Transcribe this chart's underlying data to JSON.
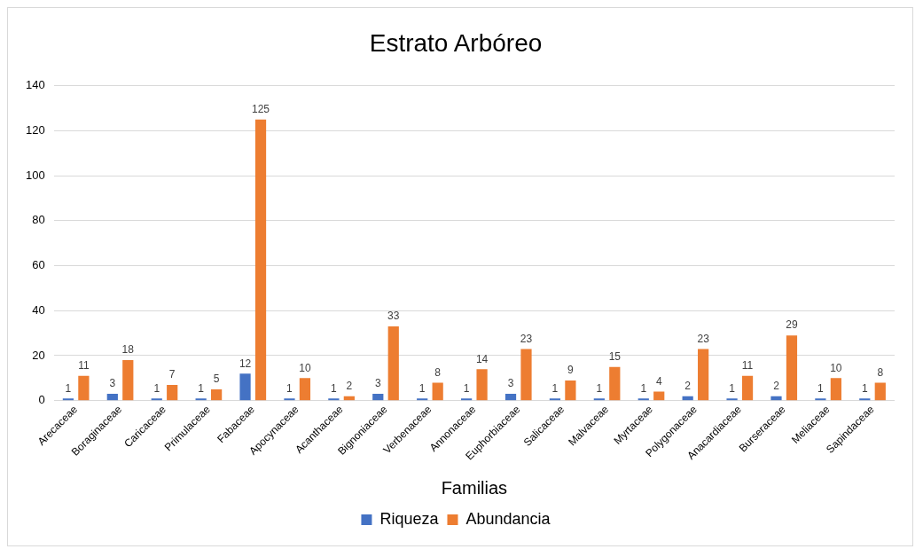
{
  "chart_data": {
    "type": "bar",
    "title": "Estrato Arbóreo",
    "xlabel": "Familias",
    "categories": [
      "Arecaceae",
      "Boraginaceae",
      "Caricaceae",
      "Primulaceae",
      "Fabaceae",
      "Apocynaceae",
      "Acanthaceae",
      "Bignoniaceae",
      "Verbenaceae",
      "Annonaceae",
      "Euphorbiaceae",
      "Salicaceae",
      "Malvaceae",
      "Myrtaceae",
      "Polygonaceae",
      "Anacardiaceae",
      "Burseraceae",
      "Meliaceae",
      "Sapindaceae"
    ],
    "series": [
      {
        "name": "Riqueza",
        "color": "#4472c4",
        "values": [
          1,
          3,
          1,
          1,
          12,
          1,
          1,
          3,
          1,
          1,
          3,
          1,
          1,
          1,
          2,
          1,
          2,
          1,
          1
        ]
      },
      {
        "name": "Abundancia",
        "color": "#ed7d31",
        "values": [
          11,
          18,
          7,
          5,
          125,
          10,
          2,
          33,
          8,
          14,
          23,
          9,
          15,
          4,
          23,
          11,
          29,
          10,
          8
        ]
      }
    ],
    "ylim": [
      0,
      140
    ],
    "yticks": [
      0,
      20,
      40,
      60,
      80,
      100,
      120,
      140
    ],
    "grid": "y",
    "legend": "bottom",
    "data_labels": true
  }
}
